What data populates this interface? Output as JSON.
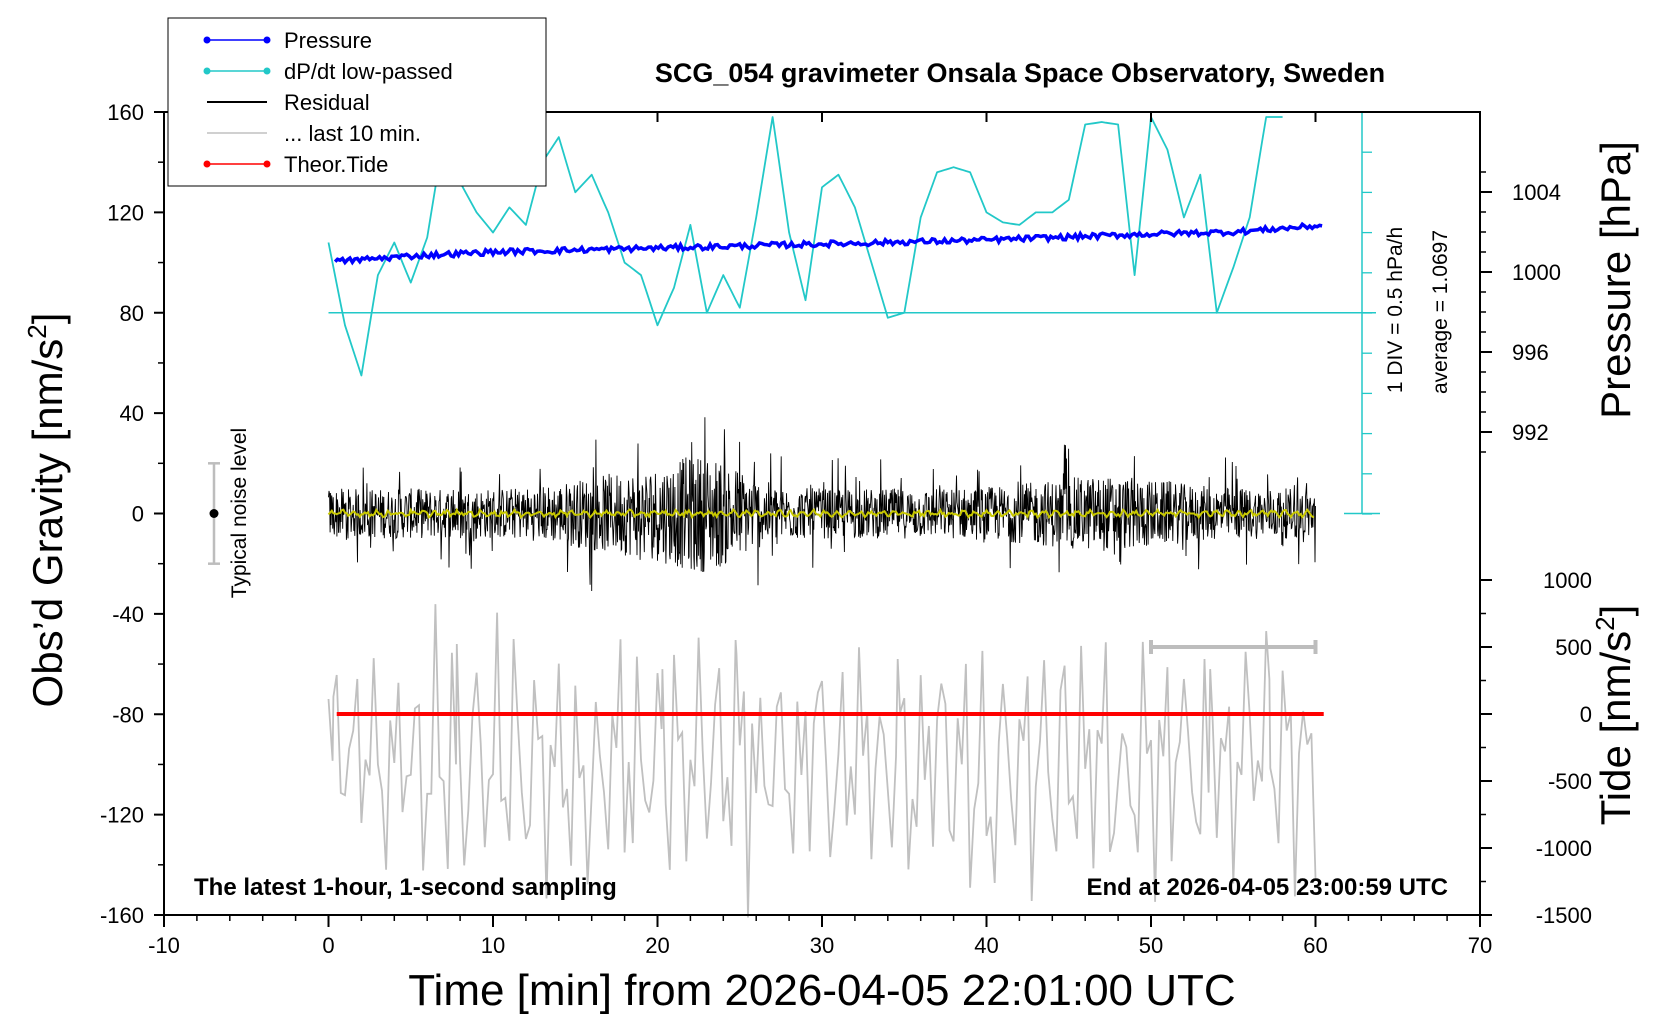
{
  "chart_data": {
    "type": "line",
    "title": "SCG_054 gravimeter Onsala Space Observatory, Sweden",
    "xlabel": "Time [min] from 2026-04-05 22:01:00 UTC",
    "ylabel_left_main": "Obs’d Gravity [nm/s",
    "ylabel_left_sup": "2",
    "ylabel_left_end": "]",
    "ylabel_right_top": "Pressure [hPa]",
    "ylabel_right_bottom_main": "Tide [nm/s",
    "ylabel_right_bottom_sup": "2",
    "ylabel_right_bottom_end": "]",
    "xlim": [
      -10,
      70
    ],
    "ylim": [
      -160,
      160
    ],
    "xticks": [
      "-10",
      "0",
      "10",
      "20",
      "30",
      "40",
      "50",
      "60",
      "70"
    ],
    "yticks": [
      "160",
      "120",
      "80",
      "40",
      "0",
      "-40",
      "-80",
      "-120",
      "-160"
    ],
    "pressure_axis": {
      "ticks": [
        "1004",
        "1000",
        "996",
        "992"
      ],
      "range": [
        992,
        1004
      ]
    },
    "tide_axis": {
      "ticks": [
        "1000",
        "500",
        "0",
        "-500",
        "-1000",
        "-1500"
      ],
      "range": [
        -1500,
        1000
      ]
    },
    "legend_position": "top-left",
    "legend": [
      {
        "label": "Pressure",
        "color": "#0000ff",
        "marker": true
      },
      {
        "label": "dP/dt low-passed",
        "color": "#22c8c8",
        "marker": true
      },
      {
        "label": "Residual",
        "color": "#000000",
        "marker": false
      },
      {
        "label": "... last 10 min.",
        "color": "#c0c0c0",
        "marker": false
      },
      {
        "label": "Theor.Tide",
        "color": "#ff0000",
        "marker": true
      }
    ],
    "annotations": {
      "noise": "Typical noise level",
      "div": "1 DIV = 0.5 hPa/h",
      "average": "average = 1.0697",
      "bottom_left": "The latest 1-hour, 1-second sampling",
      "bottom_right": "End at 2026-04-05 23:00:59 UTC"
    },
    "last10_bracket": [
      50,
      60
    ],
    "series": [
      {
        "name": "Pressure",
        "color": "#0000ff",
        "units": "hPa",
        "x": [
          0,
          5,
          10,
          20,
          30,
          40,
          50,
          55,
          60
        ],
        "values": [
          1000.5,
          1000.8,
          1001.0,
          1001.2,
          1001.4,
          1001.6,
          1001.9,
          1002.0,
          1002.3
        ]
      },
      {
        "name": "dP/dt low-passed",
        "color": "#22c8c8",
        "units": "nm/s2 (plot scale)",
        "x": [
          0,
          1,
          2,
          3,
          4,
          5,
          6,
          7,
          8,
          9,
          10,
          11,
          12,
          13,
          14,
          15,
          16,
          17,
          18,
          19,
          20,
          21,
          22,
          23,
          24,
          25,
          26,
          27,
          28,
          29,
          30,
          31,
          32,
          33,
          34,
          35,
          36,
          37,
          38,
          39,
          40,
          41,
          42,
          43,
          44,
          45,
          46,
          47,
          48,
          49,
          50,
          51,
          52,
          53,
          54,
          55,
          56,
          57,
          58
        ],
        "values": [
          108,
          75,
          55,
          95,
          108,
          92,
          110,
          150,
          132,
          120,
          112,
          122,
          115,
          140,
          150,
          128,
          135,
          120,
          100,
          95,
          75,
          90,
          115,
          80,
          95,
          82,
          118,
          158,
          112,
          85,
          130,
          135,
          122,
          100,
          78,
          80,
          118,
          136,
          138,
          136,
          120,
          116,
          115,
          120,
          120,
          125,
          155,
          156,
          155,
          95,
          158,
          145,
          118,
          135,
          80,
          98,
          118,
          158,
          165
        ]
      },
      {
        "name": "Residual",
        "color": "#000000",
        "units": "nm/s2",
        "x": [
          0,
          60
        ],
        "values": [
          0,
          0
        ]
      },
      {
        "name": "... last 10 min.",
        "color": "#c0c0c0",
        "units": "nm/s2",
        "x": [
          0,
          60
        ],
        "values": [
          -100,
          -100
        ]
      },
      {
        "name": "Theor.Tide",
        "color": "#ff0000",
        "units": "nm/s2 (tide axis)",
        "x": [
          0,
          60
        ],
        "values": [
          0,
          0
        ]
      }
    ]
  }
}
